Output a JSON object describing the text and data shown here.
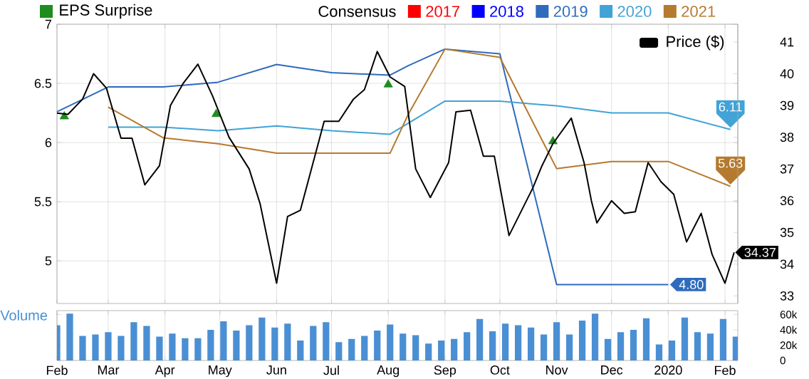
{
  "chart_data": [
    {
      "type": "line",
      "legend_title": "Consensus",
      "legend": "top",
      "grid": true,
      "tick_labels": "y",
      "xlim": [
        "2019-02-01",
        "2020-02-08"
      ],
      "xticks": [
        {
          "value": "2019-02-01",
          "label": null
        },
        {
          "value": "2019-03-01",
          "label": null
        },
        {
          "value": "2019-04-01",
          "label": null
        },
        {
          "value": "2019-05-01",
          "label": null
        },
        {
          "value": "2019-06-01",
          "label": null
        },
        {
          "value": "2019-07-01",
          "label": null
        },
        {
          "value": "2019-08-01",
          "label": null
        },
        {
          "value": "2019-09-01",
          "label": null
        },
        {
          "value": "2019-10-01",
          "label": null
        },
        {
          "value": "2019-11-01",
          "label": null
        },
        {
          "value": "2019-12-01",
          "label": null
        },
        {
          "value": "2020-01-01",
          "label": null
        },
        {
          "value": "2020-02-01",
          "label": null
        }
      ],
      "ylim": [
        4.64,
        7.0
      ],
      "yticks": [
        5,
        5.5,
        6,
        6.5,
        7
      ],
      "y2lim": [
        32.76,
        41.56
      ],
      "y2ticks": [
        33,
        34,
        35,
        36,
        37,
        38,
        39,
        40,
        41
      ],
      "series": [
        {
          "name": "2017",
          "color": "#ff0000"
        },
        {
          "name": "2018",
          "color": "#0000ff"
        },
        {
          "name": "2019",
          "color": "#2e6bbd",
          "x": [
            "2019-02-01",
            "2019-03-01",
            "2019-03-31",
            "2019-04-30",
            "2019-06-01",
            "2019-07-01",
            "2019-08-02",
            "2019-08-12",
            "2019-09-01",
            "2019-10-01",
            "2019-11-01",
            "2020-01-01"
          ],
          "values": [
            6.26,
            6.47,
            6.47,
            6.51,
            6.66,
            6.59,
            6.57,
            6.65,
            6.79,
            6.75,
            4.8,
            4.8
          ],
          "value_labels": [
            null,
            null,
            null,
            null,
            null,
            null,
            null,
            null,
            null,
            null,
            null,
            "4.80"
          ]
        },
        {
          "name": "2020",
          "color": "#41a3d6",
          "x": [
            "2019-03-01",
            "2019-03-31",
            "2019-04-30",
            "2019-06-01",
            "2019-07-01",
            "2019-08-02",
            "2019-09-01",
            "2019-10-01",
            "2019-11-01",
            "2019-12-01",
            "2020-01-01",
            "2020-02-04"
          ],
          "values": [
            6.13,
            6.13,
            6.1,
            6.14,
            6.1,
            6.07,
            6.35,
            6.35,
            6.31,
            6.25,
            6.25,
            6.11
          ],
          "value_labels": [
            null,
            null,
            null,
            null,
            null,
            null,
            null,
            null,
            null,
            null,
            null,
            "6.11"
          ]
        },
        {
          "name": "2021",
          "color": "#b57a2e",
          "x": [
            "2019-03-01",
            "2019-03-31",
            "2019-04-30",
            "2019-06-01",
            "2019-07-01",
            "2019-08-02",
            "2019-08-12",
            "2019-09-01",
            "2019-10-01",
            "2019-11-01",
            "2019-12-01",
            "2020-01-01",
            "2020-02-04"
          ],
          "values": [
            6.3,
            6.04,
            5.99,
            5.91,
            5.91,
            5.91,
            6.24,
            6.79,
            6.72,
            5.78,
            5.84,
            5.84,
            5.63
          ],
          "value_labels": [
            null,
            null,
            null,
            null,
            null,
            null,
            null,
            null,
            null,
            null,
            null,
            null,
            "5.63"
          ]
        },
        {
          "name": "Price ($)",
          "color": "#000000",
          "axis": "y2",
          "x": [
            "2019-02-01",
            "2019-02-07",
            "2019-02-15",
            "2019-02-21",
            "2019-02-28",
            "2019-03-08",
            "2019-03-14",
            "2019-03-21",
            "2019-03-29",
            "2019-04-04",
            "2019-04-11",
            "2019-04-19",
            "2019-04-27",
            "2019-05-06",
            "2019-05-17",
            "2019-05-23",
            "2019-06-01",
            "2019-06-07",
            "2019-06-14",
            "2019-06-27",
            "2019-07-05",
            "2019-07-13",
            "2019-07-19",
            "2019-07-26",
            "2019-08-02",
            "2019-08-10",
            "2019-08-16",
            "2019-08-24",
            "2019-09-03",
            "2019-09-07",
            "2019-09-15",
            "2019-09-22",
            "2019-09-28",
            "2019-10-06",
            "2019-10-19",
            "2019-10-24",
            "2019-10-30",
            "2019-11-09",
            "2019-11-16",
            "2019-11-20",
            "2019-11-23",
            "2019-12-01",
            "2019-12-08",
            "2019-12-14",
            "2019-12-21",
            "2019-12-28",
            "2020-01-04",
            "2020-01-11",
            "2020-01-19",
            "2020-01-25",
            "2020-02-01",
            "2020-02-06"
          ],
          "values": [
            38.76,
            38.72,
            39.2,
            40.0,
            39.55,
            37.97,
            37.97,
            36.5,
            37.1,
            39.0,
            39.7,
            40.3,
            39.3,
            38.0,
            37.0,
            35.9,
            33.4,
            35.5,
            35.7,
            38.5,
            38.5,
            39.2,
            39.5,
            40.7,
            39.9,
            39.6,
            37.0,
            36.1,
            37.2,
            38.8,
            38.85,
            37.4,
            37.4,
            34.9,
            36.4,
            37.1,
            37.8,
            38.6,
            37.2,
            36.0,
            35.3,
            36.0,
            35.6,
            35.65,
            37.2,
            36.6,
            36.2,
            34.7,
            35.6,
            34.3,
            33.4,
            34.37
          ],
          "value_labels": [
            null,
            null,
            null,
            null,
            null,
            null,
            null,
            null,
            null,
            null,
            null,
            null,
            null,
            null,
            null,
            null,
            null,
            null,
            null,
            null,
            null,
            null,
            null,
            null,
            null,
            null,
            null,
            null,
            null,
            null,
            null,
            null,
            null,
            null,
            null,
            null,
            null,
            null,
            null,
            null,
            null,
            null,
            null,
            null,
            null,
            null,
            null,
            null,
            null,
            null,
            null,
            "34.37"
          ]
        },
        {
          "name": "EPS Surprise",
          "type": "scatter",
          "marker": "triangle",
          "color": "#1e8c1e",
          "x": [
            "2019-02-05",
            "2019-04-29",
            "2019-08-01",
            "2019-10-30"
          ],
          "values": [
            6.22,
            6.24,
            6.49,
            6.01
          ]
        }
      ]
    },
    {
      "type": "bar",
      "title": "Volume",
      "color": "#4a8fd4",
      "grid": "x",
      "xlim": [
        "2019-02-01",
        "2020-02-08"
      ],
      "xticks": [
        {
          "value": "2019-02-01",
          "label": "Feb"
        },
        {
          "value": "2019-03-01",
          "label": "Mar"
        },
        {
          "value": "2019-04-01",
          "label": "Apr"
        },
        {
          "value": "2019-05-01",
          "label": "May"
        },
        {
          "value": "2019-06-01",
          "label": "Jun"
        },
        {
          "value": "2019-07-01",
          "label": "Jul"
        },
        {
          "value": "2019-08-01",
          "label": "Aug"
        },
        {
          "value": "2019-09-01",
          "label": "Sep"
        },
        {
          "value": "2019-10-01",
          "label": "Oct"
        },
        {
          "value": "2019-11-01",
          "label": "Nov"
        },
        {
          "value": "2019-12-01",
          "label": "Dec"
        },
        {
          "value": "2020-01-01",
          "label": "2020"
        },
        {
          "value": "2020-02-01",
          "label": "Feb"
        }
      ],
      "ylim": [
        0,
        65000
      ],
      "yticks": [
        0,
        {
          "value": 20000,
          "label": "20k"
        },
        {
          "value": 40000,
          "label": "40k"
        },
        {
          "value": 60000,
          "label": "60k"
        }
      ],
      "x": [
        "2019-02-01",
        "2019-02-08",
        "2019-02-15",
        "2019-02-22",
        "2019-03-01",
        "2019-03-08",
        "2019-03-15",
        "2019-03-22",
        "2019-03-29",
        "2019-04-05",
        "2019-04-12",
        "2019-04-19",
        "2019-04-26",
        "2019-05-03",
        "2019-05-10",
        "2019-05-17",
        "2019-05-24",
        "2019-05-31",
        "2019-06-07",
        "2019-06-14",
        "2019-06-21",
        "2019-06-28",
        "2019-07-05",
        "2019-07-12",
        "2019-07-19",
        "2019-07-26",
        "2019-08-02",
        "2019-08-09",
        "2019-08-16",
        "2019-08-23",
        "2019-08-30",
        "2019-09-06",
        "2019-09-13",
        "2019-09-20",
        "2019-09-27",
        "2019-10-04",
        "2019-10-11",
        "2019-10-18",
        "2019-10-25",
        "2019-11-01",
        "2019-11-08",
        "2019-11-15",
        "2019-11-22",
        "2019-11-29",
        "2019-12-06",
        "2019-12-13",
        "2019-12-20",
        "2019-12-27",
        "2020-01-03",
        "2020-01-10",
        "2020-01-17",
        "2020-01-24",
        "2020-01-31",
        "2020-02-07"
      ],
      "values": [
        46000,
        61000,
        32000,
        34000,
        37000,
        32000,
        50000,
        45000,
        31000,
        35000,
        29000,
        29000,
        40000,
        51000,
        39000,
        46000,
        56000,
        43000,
        48000,
        26000,
        45000,
        50000,
        24000,
        28000,
        32000,
        39000,
        47000,
        35000,
        33000,
        22000,
        26000,
        28000,
        37000,
        54000,
        38000,
        48000,
        46000,
        43000,
        34000,
        50000,
        34000,
        52000,
        61000,
        28000,
        37000,
        40000,
        55000,
        21000,
        26000,
        56000,
        37000,
        35000,
        54000,
        31000
      ]
    }
  ]
}
